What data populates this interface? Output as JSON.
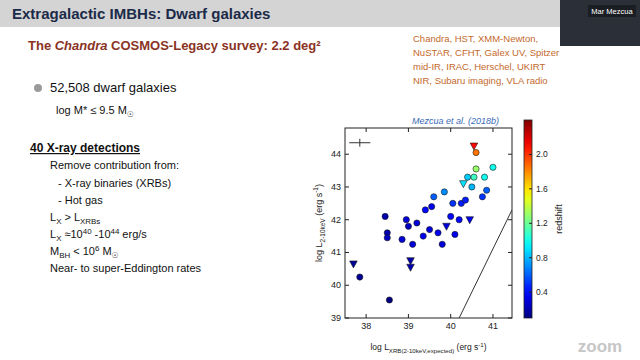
{
  "slide": {
    "title": "Extragalactic IMBHs: Dwarf galaxies",
    "subtitle": [
      "The ",
      {
        "i": "Chandra"
      },
      " COSMOS-Legacy survey: 2.2 deg²"
    ],
    "instruments": [
      "Chandra, HST, XMM-Newton,",
      "NuSTAR, CFHT, Galex UV, Spitzer",
      "mid-IR, IRAC, Herschel, UKIRT",
      "NIR, Subaru imaging, VLA radio"
    ],
    "bullet": "52,508 dwarf galaxies",
    "mass_cut": [
      "log M* ≤ 9.5 M",
      {
        "sub": "☉"
      }
    ],
    "detections": "40 X-ray detections",
    "items": [
      "Remove contribution from:",
      "- X-ray binaries (XRBs)",
      "- Hot gas",
      [
        "L",
        {
          "sub": "X"
        },
        " > L",
        {
          "sub": "XRBs"
        }
      ],
      [
        "L",
        {
          "sub": "X"
        },
        " ≈10",
        {
          "sup": "40"
        },
        " -10",
        {
          "sup": "44"
        },
        " erg/s"
      ],
      [
        "M",
        {
          "sub": "BH"
        },
        " < 10",
        {
          "sup": "6"
        },
        " M",
        {
          "sub": "☉"
        }
      ],
      "Near- to super-Eddington rates"
    ],
    "reference": "Mezcua et al. (2018b)",
    "presenter": "Mar Mezcua",
    "app": "zoom"
  },
  "chart_data": {
    "type": "scatter",
    "xlabel": [
      "log L",
      {
        "sub": "XRB(2-10keV,expected)"
      },
      " (erg s",
      {
        "sup": "-1"
      },
      ")"
    ],
    "ylabel": [
      "log L",
      {
        "sub": "2-10keV"
      },
      " (erg s",
      {
        "sup": "-1"
      },
      ")"
    ],
    "xlim": [
      37.5,
      41.45
    ],
    "ylim": [
      39,
      44.8
    ],
    "xticks": [
      38,
      39,
      40,
      41
    ],
    "yticks": [
      39,
      40,
      41,
      42,
      43,
      44
    ],
    "colorbar": {
      "label": "redshift",
      "range": [
        0.1,
        2.4
      ],
      "ticks": [
        0.4,
        0.8,
        1.2,
        1.6,
        {
          "value": 2,
          "label": "2.0"
        }
      ]
    },
    "series": [
      {
        "marker": "circle",
        "x": [
          37.85,
          38.45,
          38.5,
          38.5,
          38.55,
          38.85,
          38.95,
          39.0,
          39.1,
          39.2,
          39.35,
          39.4,
          39.5,
          39.55,
          39.6,
          39.7,
          39.8,
          39.85,
          40.0,
          40.05,
          40.1,
          40.2,
          40.25,
          40.35,
          40.4,
          40.5,
          40.55,
          40.6,
          40.6,
          40.75,
          40.8,
          40.85,
          41.0
        ],
        "values": [
          40.25,
          42.1,
          41.6,
          41.45,
          39.55,
          41.4,
          42.0,
          41.8,
          41.25,
          41.9,
          41.5,
          42.3,
          41.7,
          42.4,
          42.7,
          41.6,
          41.25,
          42.85,
          42.1,
          42.5,
          41.55,
          42.0,
          42.5,
          42.6,
          43.3,
          43.0,
          43.3,
          43.55,
          44.05,
          42.7,
          43.3,
          42.9,
          43.6
        ],
        "redshift": [
          0.15,
          0.2,
          0.2,
          0.25,
          0.1,
          0.3,
          0.3,
          0.25,
          0.3,
          0.3,
          0.35,
          0.4,
          0.3,
          0.35,
          0.6,
          0.35,
          0.3,
          0.7,
          0.4,
          0.5,
          0.35,
          0.4,
          0.45,
          0.45,
          0.85,
          0.8,
          1.1,
          1.3,
          1.85,
          0.5,
          1.0,
          0.6,
          1.0
        ]
      },
      {
        "marker": "triangle_down",
        "x": [
          37.7,
          39.05,
          39.05,
          39.9,
          40.3,
          40.45,
          40.55
        ],
        "values": [
          40.65,
          40.75,
          40.55,
          41.8,
          43.1,
          42.0,
          44.25
        ],
        "redshift": [
          0.15,
          0.2,
          0.2,
          0.3,
          0.9,
          0.35,
          2.1
        ]
      }
    ],
    "reference_line": {
      "x": [
        40.2,
        41.45
      ],
      "values": [
        39,
        42.3
      ]
    },
    "typical_error": {
      "x": 37.85,
      "y": 44.35,
      "xerr": 0.25,
      "yerr": 0.12
    }
  }
}
